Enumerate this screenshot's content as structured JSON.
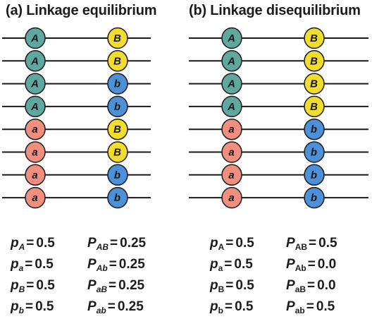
{
  "panels": [
    {
      "title": "(a) Linkage equilibrium",
      "rows": [
        [
          "A",
          "B"
        ],
        [
          "A",
          "B"
        ],
        [
          "A",
          "b"
        ],
        [
          "A",
          "b"
        ],
        [
          "a",
          "B"
        ],
        [
          "a",
          "B"
        ],
        [
          "a",
          "b"
        ],
        [
          "a",
          "b"
        ]
      ],
      "allele_freqs": [
        {
          "symbol": "p",
          "sub": "A",
          "value": "0.5"
        },
        {
          "symbol": "p",
          "sub": "a",
          "value": "0.5"
        },
        {
          "symbol": "p",
          "sub": "B",
          "value": "0.5"
        },
        {
          "symbol": "p",
          "sub": "b",
          "value": "0.5"
        }
      ],
      "haplotype_freqs": [
        {
          "symbol": "P",
          "sub": "AB",
          "value": "0.25"
        },
        {
          "symbol": "P",
          "sub": "Ab",
          "value": "0.25"
        },
        {
          "symbol": "P",
          "sub": "aB",
          "value": "0.25"
        },
        {
          "symbol": "P",
          "sub": "ab",
          "value": "0.25"
        }
      ]
    },
    {
      "title": "(b) Linkage disequilibrium",
      "rows": [
        [
          "A",
          "B"
        ],
        [
          "A",
          "B"
        ],
        [
          "A",
          "B"
        ],
        [
          "A",
          "B"
        ],
        [
          "a",
          "b"
        ],
        [
          "a",
          "b"
        ],
        [
          "a",
          "b"
        ],
        [
          "a",
          "b"
        ]
      ],
      "allele_freqs": [
        {
          "symbol": "p",
          "sub": "A",
          "value": "0.5"
        },
        {
          "symbol": "p",
          "sub": "a",
          "value": "0.5"
        },
        {
          "symbol": "p",
          "sub": "B",
          "value": "0.5"
        },
        {
          "symbol": "p",
          "sub": "b",
          "value": "0.5"
        }
      ],
      "haplotype_freqs": [
        {
          "symbol": "P",
          "sub": "AB",
          "value": "0.5"
        },
        {
          "symbol": "P",
          "sub": "Ab",
          "value": "0.0"
        },
        {
          "symbol": "P",
          "sub": "aB",
          "value": "0.0"
        },
        {
          "symbol": "P",
          "sub": "ab",
          "value": "0.5"
        }
      ]
    }
  ],
  "allele_colors": {
    "A": "#5fa8a0",
    "a": "#f08e80",
    "B": "#f2dc2e",
    "b": "#4d90d8"
  },
  "line_color": "#1a1a1a"
}
